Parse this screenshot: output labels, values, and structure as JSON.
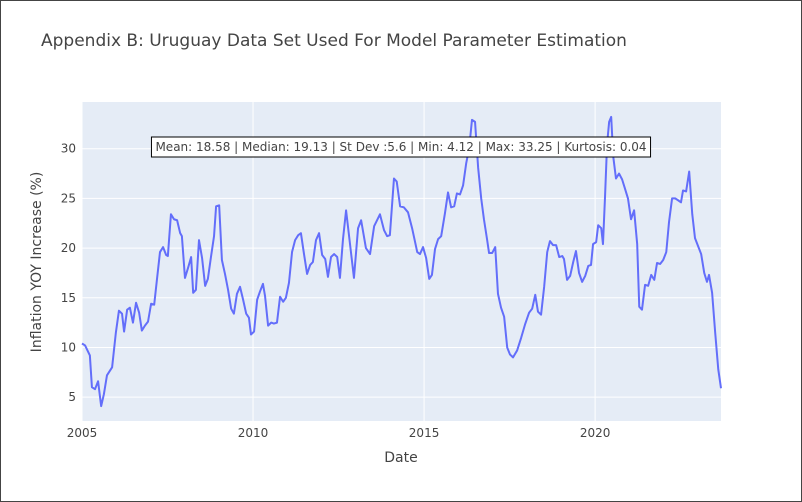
{
  "chart_data": {
    "type": "line",
    "title": "Appendix B: Uruguay Data Set Used For Model Parameter Estimation",
    "x_label": "Date",
    "y_label": "Inflation YOY Increase (%)",
    "annotation": "Mean: 18.58 | Median: 19.13 | St Dev :5.6 | Min: 4.12 | Max: 33.25 | Kurtosis: 0.04",
    "xlim": [
      2005,
      2023.68
    ],
    "xticks": [
      2005,
      2010,
      2015,
      2020
    ],
    "ylim": [
      2.6,
      34.7
    ],
    "yticks": [
      5,
      10,
      15,
      20,
      25,
      30
    ],
    "grid": true,
    "plot_background": "#e5ecf6",
    "series": [
      {
        "color": "#636efa",
        "x": [
          2005.0,
          2005.09,
          2005.23,
          2005.29,
          2005.38,
          2005.47,
          2005.56,
          2005.64,
          2005.73,
          2005.88,
          2005.99,
          2006.08,
          2006.17,
          2006.23,
          2006.32,
          2006.4,
          2006.49,
          2006.58,
          2006.67,
          2006.75,
          2006.84,
          2006.93,
          2007.02,
          2007.11,
          2007.19,
          2007.28,
          2007.37,
          2007.46,
          2007.51,
          2007.6,
          2007.69,
          2007.78,
          2007.87,
          2007.92,
          2008.01,
          2008.1,
          2008.19,
          2008.25,
          2008.33,
          2008.42,
          2008.51,
          2008.6,
          2008.68,
          2008.77,
          2008.86,
          2008.92,
          2009.01,
          2009.09,
          2009.18,
          2009.27,
          2009.36,
          2009.44,
          2009.53,
          2009.62,
          2009.71,
          2009.8,
          2009.88,
          2009.94,
          2010.03,
          2010.12,
          2010.2,
          2010.29,
          2010.35,
          2010.44,
          2010.53,
          2010.61,
          2010.7,
          2010.79,
          2010.88,
          2010.96,
          2011.05,
          2011.14,
          2011.23,
          2011.32,
          2011.4,
          2011.49,
          2011.58,
          2011.67,
          2011.75,
          2011.84,
          2011.93,
          2012.02,
          2012.11,
          2012.19,
          2012.28,
          2012.37,
          2012.46,
          2012.54,
          2012.63,
          2012.72,
          2012.95,
          2013.07,
          2013.16,
          2013.3,
          2013.42,
          2013.54,
          2013.71,
          2013.83,
          2013.92,
          2014.0,
          2014.12,
          2014.2,
          2014.3,
          2014.41,
          2014.53,
          2014.65,
          2014.8,
          2014.88,
          2014.97,
          2015.06,
          2015.15,
          2015.23,
          2015.32,
          2015.41,
          2015.5,
          2015.61,
          2015.7,
          2015.79,
          2015.88,
          2015.96,
          2016.05,
          2016.14,
          2016.23,
          2016.32,
          2016.4,
          2016.49,
          2016.58,
          2016.67,
          2016.75,
          2016.84,
          2016.9,
          2016.99,
          2017.08,
          2017.16,
          2017.25,
          2017.34,
          2017.43,
          2017.51,
          2017.6,
          2017.72,
          2017.84,
          2017.95,
          2018.07,
          2018.16,
          2018.25,
          2018.33,
          2018.42,
          2018.51,
          2018.6,
          2018.68,
          2018.77,
          2018.86,
          2018.95,
          2019.04,
          2019.09,
          2019.18,
          2019.27,
          2019.36,
          2019.44,
          2019.53,
          2019.62,
          2019.71,
          2019.8,
          2019.88,
          2019.94,
          2020.03,
          2020.09,
          2020.18,
          2020.23,
          2020.29,
          2020.35,
          2020.41,
          2020.47,
          2020.53,
          2020.61,
          2020.7,
          2020.79,
          2020.88,
          2020.96,
          2021.05,
          2021.14,
          2021.23,
          2021.29,
          2021.37,
          2021.46,
          2021.55,
          2021.64,
          2021.73,
          2021.81,
          2021.9,
          2021.99,
          2022.08,
          2022.16,
          2022.25,
          2022.34,
          2022.43,
          2022.51,
          2022.57,
          2022.66,
          2022.75,
          2022.84,
          2022.92,
          2023.01,
          2023.1,
          2023.19,
          2023.27,
          2023.33,
          2023.42,
          2023.51,
          2023.6,
          2023.68
        ],
        "values": [
          10.4,
          10.2,
          9.2,
          6.0,
          5.8,
          6.6,
          4.1,
          5.3,
          7.2,
          8.0,
          11.5,
          13.7,
          13.4,
          11.6,
          13.8,
          14.0,
          12.5,
          14.5,
          13.5,
          11.7,
          12.2,
          12.6,
          14.4,
          14.3,
          16.8,
          19.6,
          20.1,
          19.3,
          19.2,
          23.4,
          22.9,
          22.8,
          21.5,
          21.2,
          17.0,
          18.0,
          19.1,
          15.5,
          15.8,
          20.8,
          19.0,
          16.2,
          16.9,
          19.1,
          21.2,
          24.2,
          24.3,
          18.8,
          17.4,
          15.8,
          13.9,
          13.4,
          15.4,
          16.1,
          14.8,
          13.4,
          13.0,
          11.3,
          11.6,
          14.8,
          15.6,
          16.4,
          15.2,
          12.2,
          12.5,
          12.4,
          12.5,
          15.1,
          14.6,
          15.0,
          16.5,
          19.6,
          20.8,
          21.3,
          21.5,
          19.4,
          17.4,
          18.3,
          18.6,
          20.8,
          21.5,
          19.3,
          18.9,
          17.1,
          19.1,
          19.4,
          19.1,
          17.0,
          20.9,
          23.8,
          17.0,
          22.0,
          22.8,
          20.0,
          19.4,
          22.2,
          23.4,
          21.8,
          21.2,
          21.3,
          27.0,
          26.7,
          24.2,
          24.1,
          23.6,
          22.0,
          19.6,
          19.4,
          20.1,
          19.0,
          16.9,
          17.3,
          19.9,
          20.9,
          21.2,
          23.5,
          25.6,
          24.1,
          24.2,
          25.5,
          25.4,
          26.3,
          28.5,
          30.1,
          32.9,
          32.7,
          28.1,
          25.0,
          22.9,
          20.9,
          19.5,
          19.5,
          20.1,
          15.4,
          14.0,
          13.1,
          10.0,
          9.3,
          9.0,
          9.7,
          11.0,
          12.3,
          13.5,
          13.9,
          15.3,
          13.6,
          13.3,
          16.1,
          19.6,
          20.7,
          20.3,
          20.3,
          19.1,
          19.2,
          18.9,
          16.8,
          17.2,
          18.6,
          19.7,
          17.5,
          16.6,
          17.2,
          18.2,
          18.3,
          20.4,
          20.6,
          22.3,
          22.0,
          20.4,
          25.2,
          30.5,
          32.7,
          33.2,
          29.2,
          27.0,
          27.5,
          26.9,
          25.9,
          25.0,
          22.9,
          23.8,
          20.4,
          14.1,
          13.8,
          16.3,
          16.2,
          17.3,
          16.8,
          18.5,
          18.4,
          18.8,
          19.6,
          22.6,
          25.0,
          25.0,
          24.8,
          24.6,
          25.8,
          25.7,
          27.7,
          23.4,
          21.0,
          20.2,
          19.4,
          17.5,
          16.6,
          17.3,
          15.5,
          11.5,
          7.8,
          5.9
        ]
      }
    ]
  }
}
